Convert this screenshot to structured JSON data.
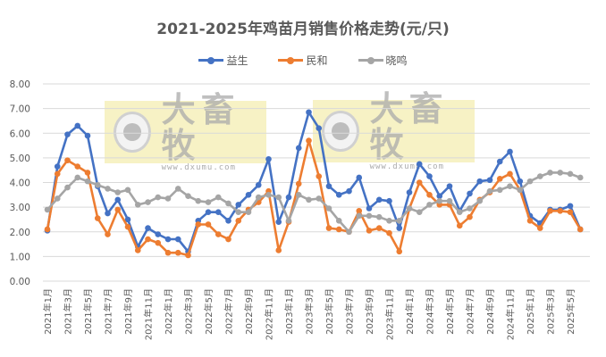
{
  "chart_data": {
    "type": "line",
    "title": "2021-2025年鸡苗月销售价格走势(元/只)",
    "xlabel": "",
    "ylabel": "",
    "ylim": [
      0,
      8
    ],
    "yticks": [
      "0.00",
      "1.00",
      "2.00",
      "3.00",
      "4.00",
      "5.00",
      "6.00",
      "7.00",
      "8.00"
    ],
    "grid": true,
    "legend_position": "top",
    "x": [
      "2021年1月",
      "2021年2月",
      "2021年3月",
      "2021年4月",
      "2021年5月",
      "2021年6月",
      "2021年7月",
      "2021年8月",
      "2021年9月",
      "2021年10月",
      "2021年11月",
      "2021年12月",
      "2022年1月",
      "2022年2月",
      "2022年3月",
      "2022年4月",
      "2022年5月",
      "2022年6月",
      "2022年7月",
      "2022年8月",
      "2022年9月",
      "2022年10月",
      "2022年11月",
      "2022年12月",
      "2023年1月",
      "2023年2月",
      "2023年3月",
      "2023年4月",
      "2023年5月",
      "2023年6月",
      "2023年7月",
      "2023年8月",
      "2023年9月",
      "2023年10月",
      "2023年11月",
      "2023年12月",
      "2024年1月",
      "2024年2月",
      "2024年3月",
      "2024年4月",
      "2024年5月",
      "2024年6月",
      "2024年7月",
      "2024年8月",
      "2024年9月",
      "2024年10月",
      "2024年11月",
      "2024年12月",
      "2025年1月",
      "2025年2月",
      "2025年3月",
      "2025年4月",
      "2025年5月",
      "2025年6月"
    ],
    "x_tick_labels_shown_every": 2,
    "series": [
      {
        "name": "益生",
        "color": "#4472C4",
        "values": [
          2.05,
          4.65,
          5.95,
          6.3,
          5.9,
          3.85,
          2.75,
          3.3,
          2.5,
          1.4,
          2.15,
          1.9,
          1.7,
          1.7,
          1.2,
          2.45,
          2.8,
          2.8,
          2.45,
          3.1,
          3.5,
          3.9,
          4.95,
          2.4,
          3.4,
          5.4,
          6.85,
          6.2,
          3.85,
          3.5,
          3.65,
          4.2,
          2.95,
          3.3,
          3.25,
          2.15,
          3.6,
          4.75,
          4.25,
          3.45,
          3.85,
          2.85,
          3.55,
          4.05,
          4.1,
          4.85,
          5.25,
          4.05,
          2.65,
          2.35,
          2.9,
          2.9,
          3.05,
          2.1
        ]
      },
      {
        "name": "民和",
        "color": "#ED7D31",
        "values": [
          2.1,
          4.35,
          4.9,
          4.65,
          4.4,
          2.55,
          1.9,
          2.9,
          2.2,
          1.25,
          1.7,
          1.55,
          1.15,
          1.15,
          1.05,
          2.3,
          2.3,
          1.9,
          1.7,
          2.45,
          2.9,
          3.2,
          3.65,
          1.25,
          2.4,
          3.95,
          5.7,
          4.25,
          2.15,
          2.1,
          2.0,
          2.85,
          2.05,
          2.15,
          1.95,
          1.2,
          2.95,
          4.0,
          3.5,
          3.1,
          3.1,
          2.25,
          2.6,
          3.3,
          3.6,
          4.15,
          4.35,
          3.7,
          2.45,
          2.15,
          2.85,
          2.85,
          2.8,
          2.1
        ]
      },
      {
        "name": "晓鸣",
        "color": "#A5A5A5",
        "values": [
          2.9,
          3.35,
          3.8,
          4.2,
          4.05,
          3.9,
          3.75,
          3.6,
          3.7,
          3.1,
          3.2,
          3.4,
          3.35,
          3.75,
          3.45,
          3.25,
          3.2,
          3.4,
          3.15,
          2.8,
          2.8,
          3.4,
          3.5,
          3.4,
          2.45,
          3.5,
          3.3,
          3.35,
          2.95,
          2.45,
          2.0,
          2.65,
          2.65,
          2.6,
          2.45,
          2.45,
          2.95,
          2.8,
          3.1,
          3.25,
          3.25,
          2.8,
          2.95,
          3.25,
          3.65,
          3.7,
          3.85,
          3.7,
          4.05,
          4.25,
          4.4,
          4.4,
          4.35,
          4.2
        ]
      }
    ]
  },
  "watermarks": [
    {
      "brand": "大畜牧",
      "url": "www.dxumu.com"
    },
    {
      "brand": "大畜牧",
      "url": "www.dxumu.com"
    }
  ]
}
